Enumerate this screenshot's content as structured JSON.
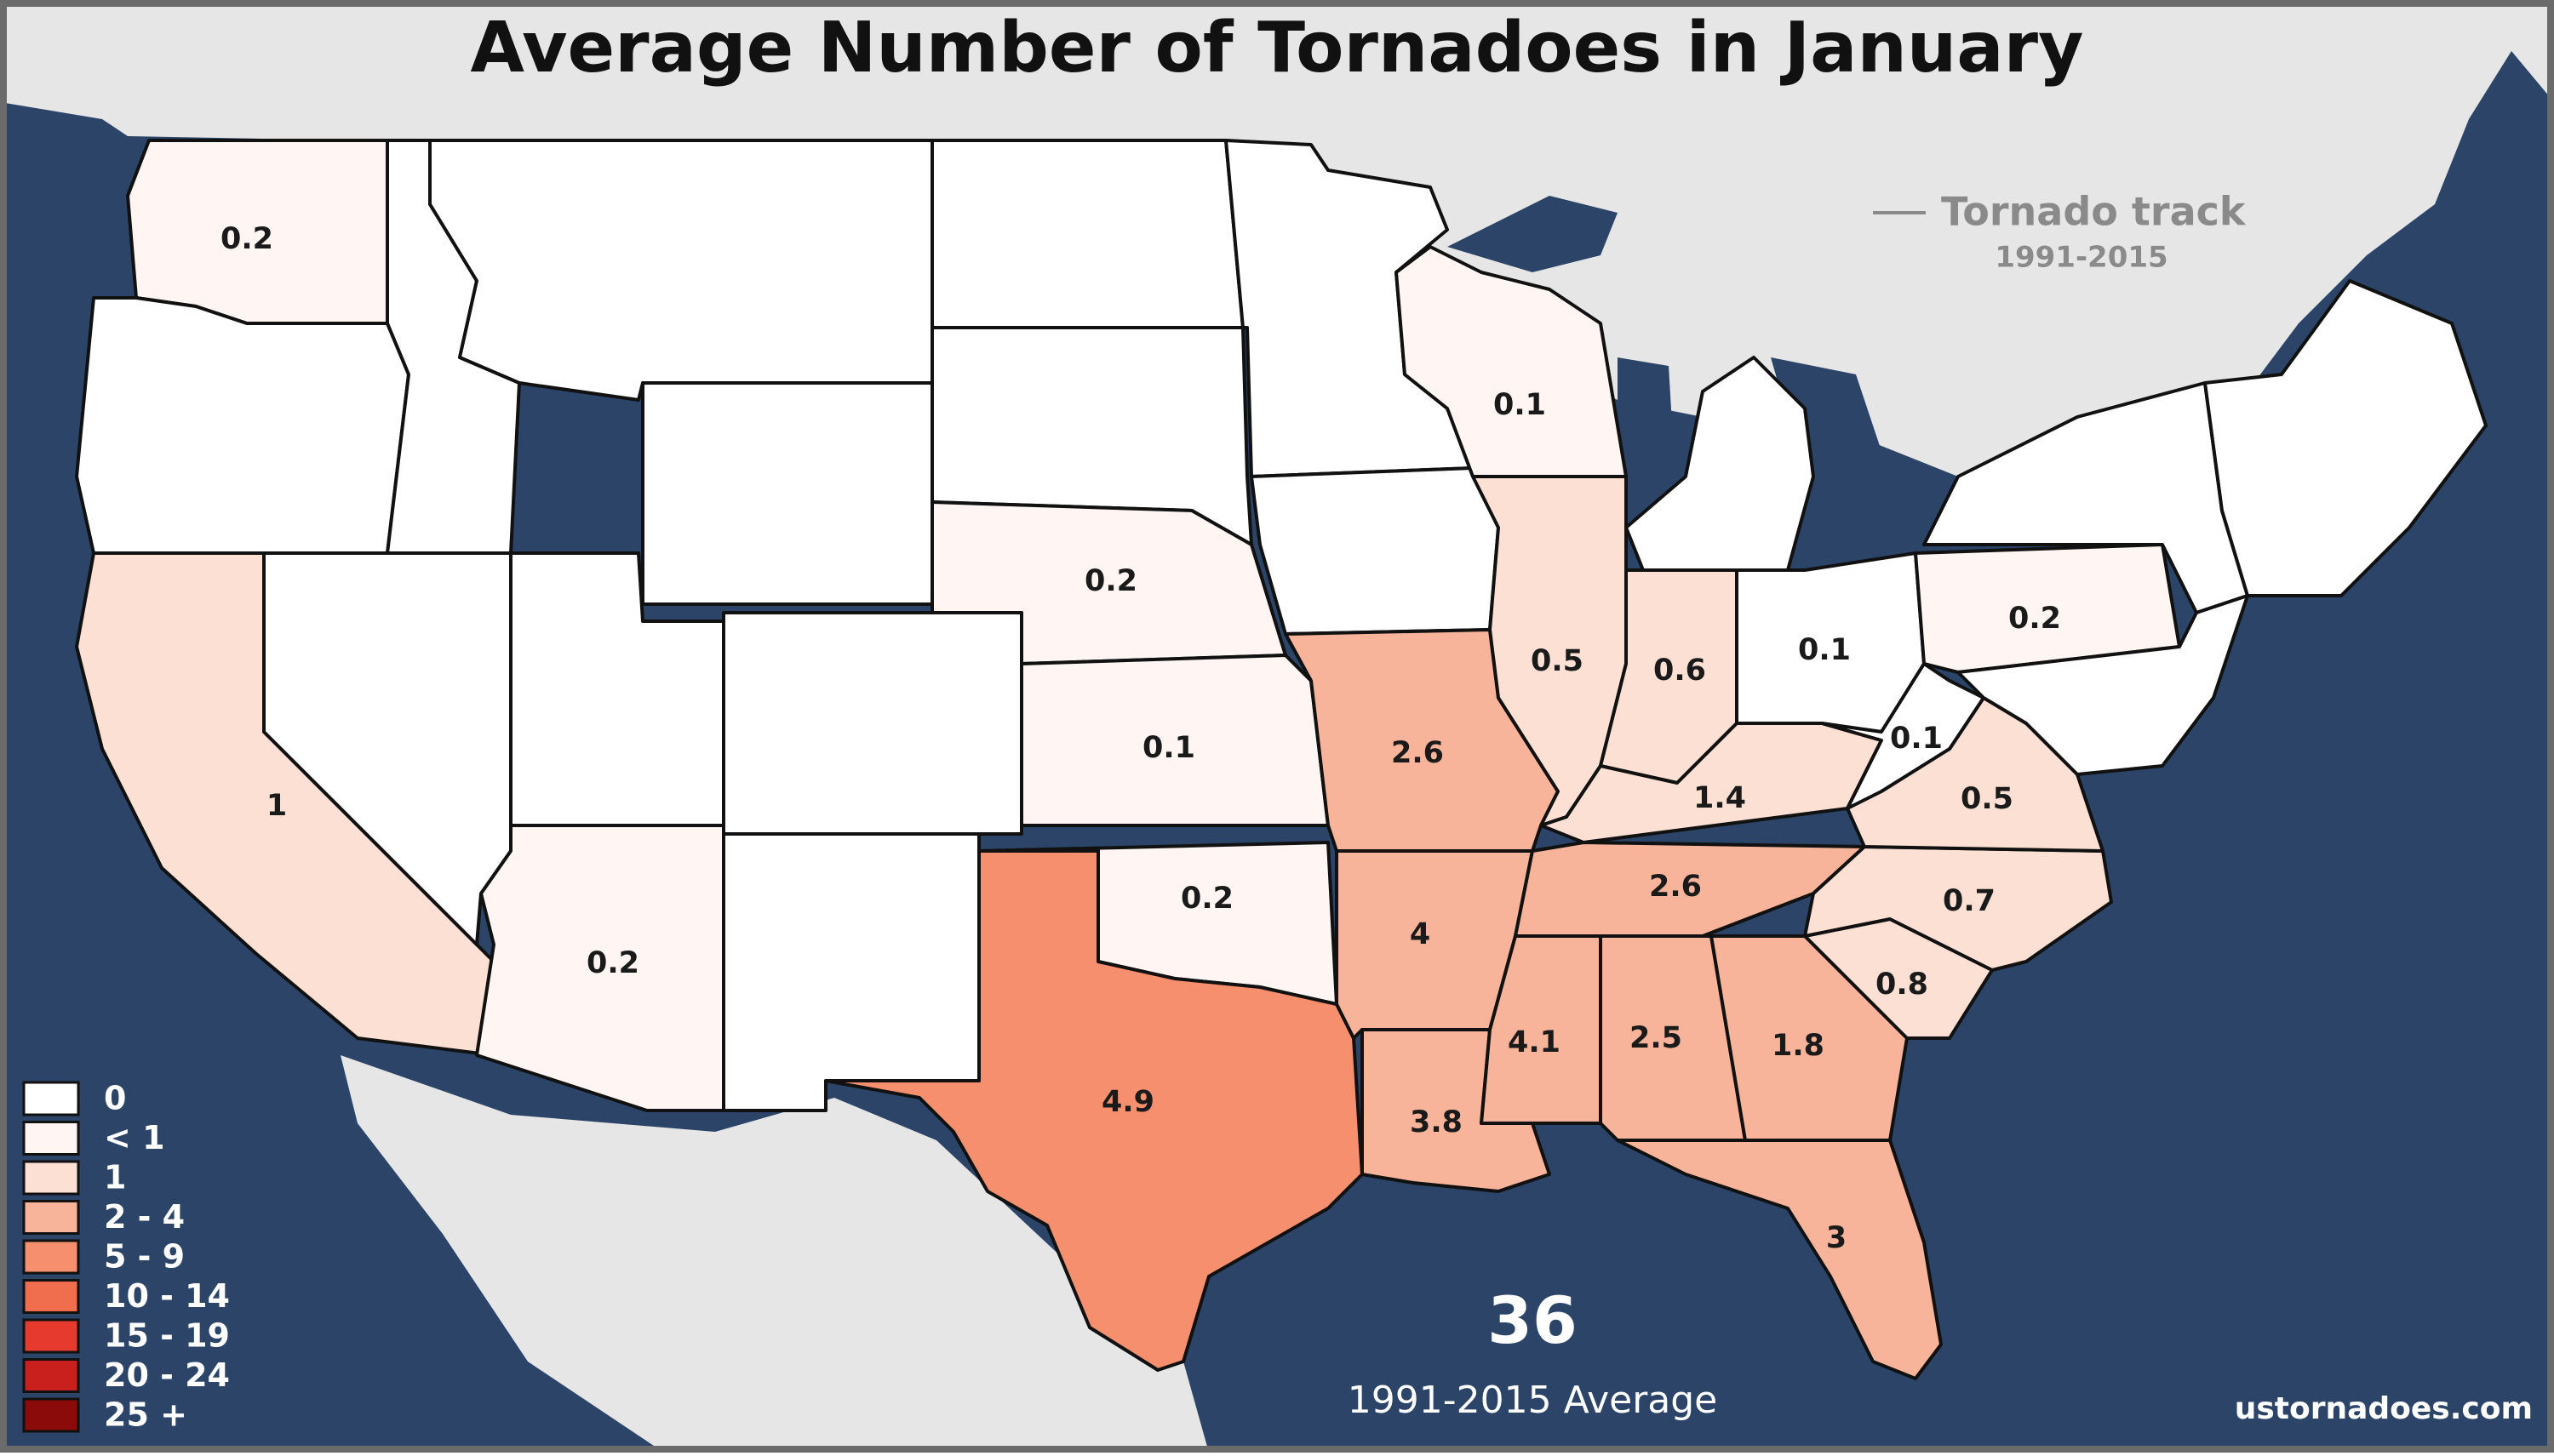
{
  "title": "Average Number of Tornadoes in January",
  "track_legend": {
    "label": "Tornado track",
    "years": "1991-2015"
  },
  "total": {
    "value": "36",
    "caption": "1991-2015 Average"
  },
  "source": "ustornadoes.com",
  "colors": {
    "ocean": "#2b4467",
    "land": "#e6e6e6",
    "zero": "#ffffff",
    "lt1": "#fff5f2",
    "one": "#fce0d3",
    "two_four": "#f7b49a",
    "five_nine": "#f58f6e",
    "ten_fourteen": "#f06e4e",
    "fifteen_nineteen": "#e63a2e",
    "twenty_twentyfour": "#c9201e",
    "twentyfive_plus": "#8b0a0a"
  },
  "legend": [
    {
      "label": "0",
      "color": "#ffffff"
    },
    {
      "label": "< 1",
      "color": "#fff5f2"
    },
    {
      "label": "1",
      "color": "#fce0d3"
    },
    {
      "label": "2 - 4",
      "color": "#f7b49a"
    },
    {
      "label": "5 - 9",
      "color": "#f58f6e"
    },
    {
      "label": "10 - 14",
      "color": "#f06e4e"
    },
    {
      "label": "15 - 19",
      "color": "#e63a2e"
    },
    {
      "label": "20 - 24",
      "color": "#c9201e"
    },
    {
      "label": "25 +",
      "color": "#8b0a0a"
    }
  ],
  "states": {
    "washington": "0.2",
    "california": "1",
    "arizona": "0.2",
    "nebraska": "0.2",
    "kansas": "0.1",
    "oklahoma": "0.2",
    "texas": "4.9",
    "missouri": "2.6",
    "arkansas": "4",
    "louisiana": "3.8",
    "mississippi": "4.1",
    "alabama": "2.5",
    "georgia": "1.8",
    "florida": "3",
    "tennessee": "2.6",
    "kentucky": "1.4",
    "illinois": "0.5",
    "indiana": "0.6",
    "ohio": "0.1",
    "wisconsin": "0.1",
    "west_virginia": "0.1",
    "virginia": "0.5",
    "north_carolina": "0.7",
    "south_carolina": "0.8",
    "pennsylvania": "0.2"
  }
}
